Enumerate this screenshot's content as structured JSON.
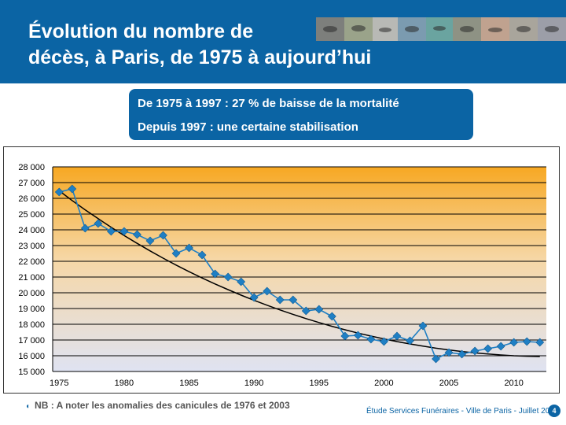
{
  "header": {
    "title_line1": "Évolution du nombre de",
    "title_line2": "décès, à Paris, de 1975 à aujourd’hui"
  },
  "callout": {
    "line1": "De 1975 à 1997 : 27 % de baisse de la mortalité",
    "line2": "Depuis 1997 : une certaine stabilisation"
  },
  "note": "NB : A noter les anomalies des canicules de 1976 et 2003",
  "footer": "Étude Services Funéraires - Ville de Paris - Juillet 2010",
  "page_number": "4",
  "colors": {
    "brand": "#0b64a4",
    "series": "#1f7fc4",
    "trend": "#000000",
    "gradient_top": "#f7a823",
    "gradient_bottom": "#dfe3f2"
  },
  "chart_data": {
    "type": "line",
    "x": [
      1975,
      1976,
      1977,
      1978,
      1979,
      1980,
      1981,
      1982,
      1983,
      1984,
      1985,
      1986,
      1987,
      1988,
      1989,
      1990,
      1991,
      1992,
      1993,
      1994,
      1995,
      1996,
      1997,
      1998,
      1999,
      2000,
      2001,
      2002,
      2003,
      2004,
      2005,
      2006,
      2007,
      2008,
      2009,
      2010,
      2011,
      2012
    ],
    "series": [
      {
        "values": [
          26400,
          26600,
          24100,
          24400,
          23900,
          23900,
          23700,
          23300,
          23650,
          22500,
          22850,
          22400,
          21200,
          21000,
          20700,
          19700,
          20100,
          19550,
          19550,
          18850,
          18950,
          18500,
          17250,
          17300,
          17050,
          16900,
          17250,
          16950,
          17900,
          15800,
          16200,
          16100,
          16300,
          16450,
          16600,
          16850,
          16900,
          16850
        ],
        "marker": "diamond"
      },
      {
        "values": [
          26480,
          25860,
          25270,
          24710,
          24160,
          23640,
          23140,
          22660,
          22200,
          21760,
          21340,
          20940,
          20560,
          20200,
          19850,
          19520,
          19210,
          18910,
          18630,
          18360,
          18110,
          17870,
          17650,
          17440,
          17250,
          17070,
          16900,
          16750,
          16610,
          16480,
          16370,
          16270,
          16180,
          16110,
          16050,
          16000,
          15970,
          15950
        ],
        "style": "trend"
      }
    ],
    "title": "",
    "xlabel": "",
    "ylabel": "",
    "xlim": [
      1974.5,
      2012.5
    ],
    "ylim": [
      15000,
      28000
    ],
    "y_ticks": [
      15000,
      16000,
      17000,
      18000,
      19000,
      20000,
      21000,
      22000,
      23000,
      24000,
      25000,
      26000,
      27000,
      28000
    ],
    "x_ticks": [
      1975,
      1980,
      1985,
      1990,
      1995,
      2000,
      2005,
      2010
    ],
    "grid": true
  }
}
